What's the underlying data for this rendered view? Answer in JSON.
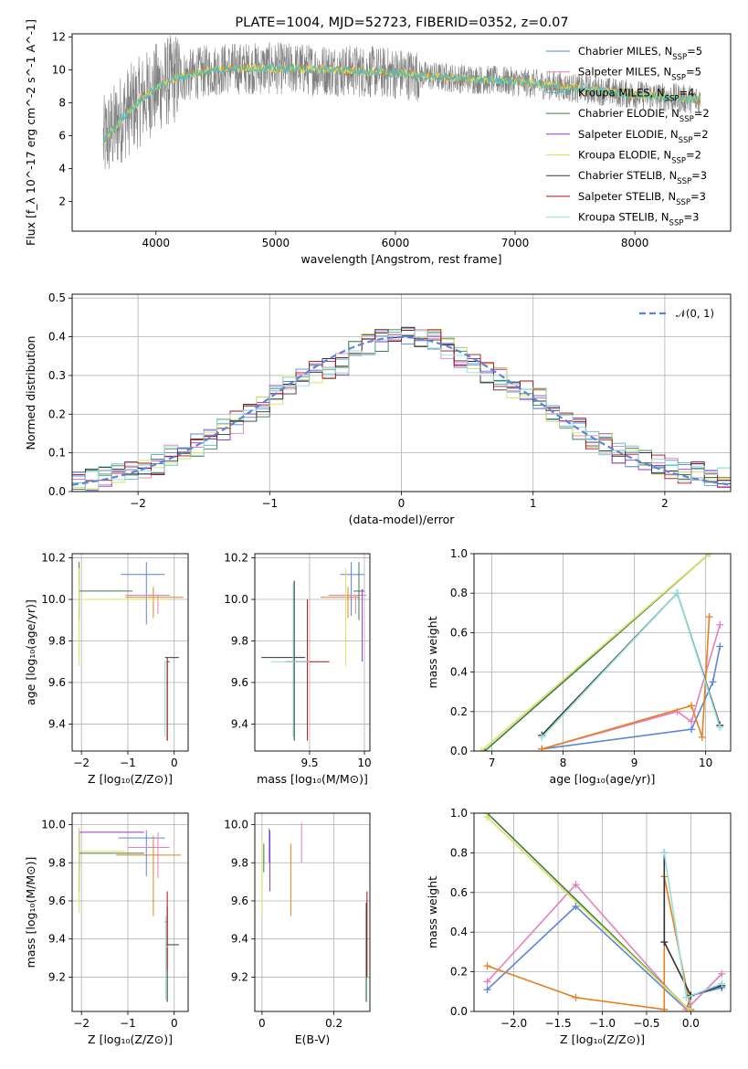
{
  "figure": {
    "title": "PLATE=1004, MJD=52723, FIBERID=0352, z=0.07"
  },
  "colors": {
    "Chabrier MILES": "#5b84d8",
    "Salpeter MILES": "#e37fbf",
    "Kroupa MILES": "#4fb8c9",
    "Chabrier ELODIE": "#3f7a4a",
    "Salpeter ELODIE": "#9933cc",
    "Kroupa ELODIE": "#d8e25a",
    "Chabrier STELIB": "#333333",
    "Salpeter STELIB": "#aa1111",
    "Kroupa STELIB": "#8fe0d8",
    "Kroupa MILES line": "#e8801f",
    "data": "#808080",
    "normal": "#5b84d8",
    "grid": "#b0b0b0"
  },
  "chart_data": [
    {
      "id": "spectrum",
      "type": "line",
      "title": "PLATE=1004, MJD=52723, FIBERID=0352, z=0.07",
      "xlabel": "wavelength [Angstrom, rest frame]",
      "ylabel": "Flux [f_λ 10^-17 erg cm^-2 s^-1 A^-1]",
      "xlim": [
        3300,
        8800
      ],
      "ylim": [
        0.2,
        12.2
      ],
      "xticks": [
        4000,
        5000,
        6000,
        7000,
        8000
      ],
      "yticks": [
        2,
        4,
        6,
        8,
        10,
        12
      ],
      "grid": false,
      "legend_position": "top-right",
      "legend": [
        {
          "prefix": "Chabrier MILES, N",
          "sub": "SSP",
          "suffix": "=5"
        },
        {
          "prefix": "Salpeter MILES, N",
          "sub": "SSP",
          "suffix": "=5"
        },
        {
          "prefix": "Kroupa MILES, N",
          "sub": "SSP",
          "suffix": "=4"
        },
        {
          "prefix": "Chabrier ELODIE, N",
          "sub": "SSP",
          "suffix": "=2"
        },
        {
          "prefix": "Salpeter ELODIE, N",
          "sub": "SSP",
          "suffix": "=2"
        },
        {
          "prefix": "Kroupa ELODIE, N",
          "sub": "SSP",
          "suffix": "=2"
        },
        {
          "prefix": "Chabrier STELIB, N",
          "sub": "SSP",
          "suffix": "=3"
        },
        {
          "prefix": "Salpeter STELIB, N",
          "sub": "SSP",
          "suffix": "=3"
        },
        {
          "prefix": "Kroupa STELIB, N",
          "sub": "SSP",
          "suffix": "=3"
        }
      ],
      "continuum_model": {
        "x": [
          3560,
          3600,
          3650,
          3700,
          3800,
          3900,
          4000,
          4100,
          4200,
          4300,
          4400,
          4600,
          5000,
          5500,
          6000,
          6500,
          7000,
          7500,
          8000,
          8500,
          8800
        ],
        "y": [
          5.6,
          6.1,
          6.4,
          7.0,
          7.7,
          8.3,
          8.9,
          9.3,
          9.6,
          9.7,
          9.9,
          10.1,
          10.1,
          10.0,
          9.8,
          9.5,
          9.3,
          8.9,
          8.5,
          8.2,
          8.0
        ]
      }
    },
    {
      "id": "residuals",
      "type": "line",
      "xlabel": "(data-model)/error",
      "ylabel": "Normed distribution",
      "xlim": [
        -2.5,
        2.5
      ],
      "ylim": [
        0,
        0.51
      ],
      "xticks": [
        -2,
        -1,
        0,
        1,
        2
      ],
      "xticklabels": [
        "−2",
        "−1",
        "0",
        "1",
        "2"
      ],
      "yticks": [
        0.0,
        0.1,
        0.2,
        0.3,
        0.4,
        0.5
      ],
      "grid": true,
      "legend_position": "top-right",
      "legend": [
        "𝒩(0, 1)"
      ],
      "bins": [
        -2.5,
        -2.4,
        -2.3,
        -2.2,
        -2.1,
        -2.0,
        -1.9,
        -1.8,
        -1.7,
        -1.6,
        -1.5,
        -1.4,
        -1.3,
        -1.2,
        -1.1,
        -1.0,
        -0.9,
        -0.8,
        -0.7,
        -0.6,
        -0.5,
        -0.4,
        -0.3,
        -0.2,
        -0.1,
        0.0,
        0.1,
        0.2,
        0.3,
        0.4,
        0.5,
        0.6,
        0.7,
        0.8,
        0.9,
        1.0,
        1.1,
        1.2,
        1.3,
        1.4,
        1.5,
        1.6,
        1.7,
        1.8,
        1.9,
        2.0,
        2.1,
        2.2,
        2.3,
        2.4,
        2.5
      ],
      "histogram": [
        0.025,
        0.03,
        0.035,
        0.045,
        0.05,
        0.06,
        0.07,
        0.09,
        0.1,
        0.12,
        0.14,
        0.16,
        0.18,
        0.2,
        0.22,
        0.25,
        0.28,
        0.3,
        0.31,
        0.32,
        0.33,
        0.36,
        0.38,
        0.39,
        0.4,
        0.41,
        0.4,
        0.39,
        0.37,
        0.35,
        0.33,
        0.31,
        0.29,
        0.27,
        0.26,
        0.24,
        0.2,
        0.18,
        0.16,
        0.14,
        0.12,
        0.1,
        0.09,
        0.08,
        0.07,
        0.06,
        0.05,
        0.05,
        0.045,
        0.04
      ]
    },
    {
      "id": "age-vs-Z",
      "type": "scatter",
      "xlabel": "Z [log₁₀(Z/Z⊙)]",
      "ylabel": "age  [log₁₀(age/yr)]",
      "xlim": [
        -2.2,
        0.3
      ],
      "ylim": [
        9.27,
        10.22
      ],
      "xticks": [
        -2,
        -1,
        0
      ],
      "xticklabels": [
        "−2",
        "−1",
        "0"
      ],
      "yticks": [
        9.4,
        9.6,
        9.8,
        10.0,
        10.2
      ],
      "grid": true,
      "points": [
        {
          "series": "Chabrier MILES",
          "x": -0.6,
          "y": 10.12,
          "xerr": [
            0.55,
            0.4
          ],
          "yerr": [
            0.24,
            0.06
          ]
        },
        {
          "series": "Salpeter MILES",
          "x": -0.35,
          "y": 10.02,
          "xerr": [
            0.7,
            0.25
          ],
          "yerr": [
            0.09,
            0.0
          ]
        },
        {
          "series": "Kroupa MILES line",
          "x": -0.45,
          "y": 10.01,
          "xerr": [
            0.6,
            0.65
          ],
          "yerr": [
            0.1,
            0.05
          ]
        },
        {
          "series": "Chabrier ELODIE",
          "x": -2.05,
          "y": 10.04,
          "xerr": [
            0.0,
            1.15
          ],
          "yerr": [
            0.14,
            0.14
          ]
        },
        {
          "series": "Kroupa ELODIE",
          "x": -2.05,
          "y": 10.0,
          "xerr": [
            0.0,
            1.9
          ],
          "yerr": [
            0.32,
            0.15
          ]
        },
        {
          "series": "Chabrier STELIB",
          "x": -0.15,
          "y": 9.72,
          "xerr": [
            0.05,
            0.25
          ],
          "yerr": [
            0.4,
            0.0
          ]
        },
        {
          "series": "Salpeter STELIB",
          "x": -0.15,
          "y": 9.7,
          "xerr": [
            0.05,
            0.05
          ],
          "yerr": [
            0.38,
            0.0
          ]
        },
        {
          "series": "Kroupa STELIB",
          "x": -0.2,
          "y": 9.7,
          "xerr": [
            0.0,
            0.05
          ],
          "yerr": [
            0.36,
            0.0
          ]
        }
      ]
    },
    {
      "id": "age-vs-mass",
      "type": "scatter",
      "xlabel": "mass [log₁₀(M/M⊙)]",
      "xlim": [
        9.0,
        10.05
      ],
      "ylim": [
        9.27,
        10.22
      ],
      "xticks": [
        9.5,
        10.0
      ],
      "yticks": [
        9.4,
        9.6,
        9.8,
        10.0,
        10.2
      ],
      "grid": true,
      "points": [
        {
          "series": "Chabrier MILES",
          "x": 9.88,
          "y": 10.12,
          "xerr": [
            0.1,
            0.12
          ],
          "yerr": [
            0.2,
            0.06
          ]
        },
        {
          "series": "Salpeter MILES",
          "x": 9.92,
          "y": 10.02,
          "xerr": [
            0.25,
            0.1
          ],
          "yerr": [
            0.09,
            0.0
          ]
        },
        {
          "series": "Kroupa MILES line",
          "x": 9.85,
          "y": 10.01,
          "xerr": [
            0.25,
            0.1
          ],
          "yerr": [
            0.1,
            0.05
          ]
        },
        {
          "series": "Chabrier ELODIE",
          "x": 9.95,
          "y": 10.04,
          "xerr": [
            0.05,
            0.05
          ],
          "yerr": [
            0.14,
            0.14
          ]
        },
        {
          "series": "Salpeter ELODIE",
          "x": 9.98,
          "y": 9.9,
          "xerr": [
            0.0,
            0.0
          ],
          "yerr": [
            0.2,
            0.15
          ]
        },
        {
          "series": "Kroupa ELODIE",
          "x": 9.83,
          "y": 10.0,
          "xerr": [
            0.0,
            0.0
          ],
          "yerr": [
            0.32,
            0.15
          ]
        },
        {
          "series": "Chabrier STELIB",
          "x": 9.36,
          "y": 9.72,
          "xerr": [
            0.3,
            0.1
          ],
          "yerr": [
            0.4,
            0.37
          ]
        },
        {
          "series": "Salpeter STELIB",
          "x": 9.48,
          "y": 9.7,
          "xerr": [
            0.2,
            0.2
          ],
          "yerr": [
            0.38,
            0.3
          ]
        },
        {
          "series": "Kroupa STELIB",
          "x": 9.35,
          "y": 9.7,
          "xerr": [
            0.2,
            0.15
          ],
          "yerr": [
            0.36,
            0.38
          ]
        }
      ]
    },
    {
      "id": "weight-vs-age",
      "type": "line",
      "xlabel": "age  [log₁₀(age/yr)]",
      "ylabel": "mass weight",
      "xlim": [
        6.75,
        10.35
      ],
      "ylim": [
        0,
        1
      ],
      "xticks": [
        7,
        8,
        9,
        10
      ],
      "yticks": [
        0.0,
        0.2,
        0.4,
        0.6,
        0.8,
        1.0
      ],
      "grid": true,
      "series": [
        {
          "name": "Chabrier MILES",
          "x": [
            7.7,
            9.8,
            10.1,
            10.2
          ],
          "y": [
            0.01,
            0.11,
            0.35,
            0.53
          ]
        },
        {
          "name": "Salpeter MILES",
          "x": [
            7.7,
            9.6,
            9.8,
            10.2
          ],
          "y": [
            0.01,
            0.2,
            0.15,
            0.64
          ]
        },
        {
          "name": "Kroupa MILES line",
          "x": [
            7.7,
            9.8,
            9.95,
            10.05
          ],
          "y": [
            0.01,
            0.23,
            0.07,
            0.68
          ]
        },
        {
          "name": "Chabrier ELODIE",
          "x": [
            6.9,
            10.05
          ],
          "y": [
            0.0,
            1.0
          ]
        },
        {
          "name": "Kroupa ELODIE",
          "x": [
            6.85,
            10.05
          ],
          "y": [
            0.0,
            1.0
          ]
        },
        {
          "name": "Chabrier STELIB",
          "x": [
            7.7,
            9.6,
            10.2
          ],
          "y": [
            0.08,
            0.8,
            0.13
          ]
        },
        {
          "name": "Kroupa STELIB",
          "x": [
            7.7,
            9.6,
            10.2
          ],
          "y": [
            0.07,
            0.8,
            0.12
          ]
        }
      ]
    },
    {
      "id": "mass-vs-Z",
      "type": "scatter",
      "xlabel": "Z [log₁₀(Z/Z⊙)]",
      "ylabel": "mass [log₁₀(M/M⊙)]",
      "xlim": [
        -2.2,
        0.3
      ],
      "ylim": [
        9.02,
        10.06
      ],
      "xticks": [
        -2,
        -1,
        0
      ],
      "xticklabels": [
        "−2",
        "−1",
        "0"
      ],
      "yticks": [
        9.2,
        9.4,
        9.6,
        9.8,
        10.0
      ],
      "grid": true,
      "points": [
        {
          "series": "Chabrier MILES",
          "x": -0.6,
          "y": 9.93,
          "xerr": [
            0.6,
            0.4
          ],
          "yerr": [
            0.2,
            0.04
          ]
        },
        {
          "series": "Salpeter MILES",
          "x": -0.35,
          "y": 9.88,
          "xerr": [
            0.65,
            0.25
          ],
          "yerr": [
            0.16,
            0.08
          ]
        },
        {
          "series": "Kroupa MILES line",
          "x": -0.45,
          "y": 9.84,
          "xerr": [
            0.8,
            0.6
          ],
          "yerr": [
            0.32,
            0.1
          ]
        },
        {
          "series": "Salpeter ELODIE",
          "x": -2.05,
          "y": 9.96,
          "xerr": [
            0.0,
            1.4
          ],
          "yerr": [
            0.2,
            0.02
          ]
        },
        {
          "series": "Chabrier ELODIE",
          "x": -2.05,
          "y": 9.85,
          "xerr": [
            0.0,
            1.4
          ],
          "yerr": [
            0.2,
            0.1
          ]
        },
        {
          "series": "Kroupa ELODIE",
          "x": -2.05,
          "y": 9.86,
          "xerr": [
            0.0,
            1.0
          ],
          "yerr": [
            0.32,
            0.12
          ]
        },
        {
          "series": "Chabrier STELIB",
          "x": -0.15,
          "y": 9.37,
          "xerr": [
            0.0,
            0.25
          ],
          "yerr": [
            0.3,
            0.2
          ]
        },
        {
          "series": "Salpeter STELIB",
          "x": -0.15,
          "y": 9.49,
          "xerr": [
            0.05,
            0.0
          ],
          "yerr": [
            0.25,
            0.16
          ]
        },
        {
          "series": "Kroupa STELIB",
          "x": -0.18,
          "y": 9.36,
          "xerr": [
            0.0,
            0.05
          ],
          "yerr": [
            0.28,
            0.16
          ]
        }
      ]
    },
    {
      "id": "mass-vs-EBV",
      "type": "scatter",
      "xlabel": "E(B-V)",
      "xlim": [
        -0.02,
        0.3
      ],
      "ylim": [
        9.02,
        10.06
      ],
      "xticks": [
        0.0,
        0.2
      ],
      "yticks": [
        9.2,
        9.4,
        9.6,
        9.8,
        10.0
      ],
      "grid": true,
      "points": [
        {
          "series": "Chabrier MILES",
          "x": 0.02,
          "y": 9.95,
          "yerr": [
            0.15,
            0.03
          ]
        },
        {
          "series": "Salpeter MILES",
          "x": 0.11,
          "y": 9.92,
          "yerr": [
            0.12,
            0.09
          ]
        },
        {
          "series": "Kroupa MILES line",
          "x": 0.08,
          "y": 9.84,
          "yerr": [
            0.32,
            0.06
          ]
        },
        {
          "series": "Salpeter ELODIE",
          "x": 0.022,
          "y": 9.85,
          "yerr": [
            0.2,
            0.12
          ]
        },
        {
          "series": "Chabrier ELODIE",
          "x": 0.005,
          "y": 9.85,
          "yerr": [
            0.1,
            0.05
          ]
        },
        {
          "series": "Kroupa ELODIE",
          "x": 0.0,
          "y": 9.8,
          "yerr": [
            0.27,
            0.12
          ]
        },
        {
          "series": "Chabrier STELIB",
          "x": 0.29,
          "y": 9.37,
          "yerr": [
            0.3,
            0.22
          ]
        },
        {
          "series": "Salpeter STELIB",
          "x": 0.292,
          "y": 9.5,
          "yerr": [
            0.3,
            0.15
          ]
        },
        {
          "series": "Kroupa STELIB",
          "x": 0.288,
          "y": 9.36,
          "yerr": [
            0.28,
            0.2
          ]
        }
      ]
    },
    {
      "id": "weight-vs-Z",
      "type": "line",
      "xlabel": "Z [log₁₀(Z/Z⊙)]",
      "ylabel": "mass weight",
      "xlim": [
        -2.45,
        0.45
      ],
      "ylim": [
        0,
        1
      ],
      "xticks": [
        -2.0,
        -1.5,
        -1.0,
        -0.5,
        0.0
      ],
      "xticklabels": [
        "−2.0",
        "−1.5",
        "−1.0",
        "−0.5",
        "0.0"
      ],
      "yticks": [
        0.0,
        0.2,
        0.4,
        0.6,
        0.8,
        1.0
      ],
      "grid": true,
      "series": [
        {
          "name": "Chabrier MILES",
          "x": [
            -2.3,
            -1.3,
            -0.05,
            0.0,
            0.35
          ],
          "y": [
            0.11,
            0.53,
            0.01,
            0.08,
            0.12
          ]
        },
        {
          "name": "Salpeter MILES",
          "x": [
            -2.3,
            -1.3,
            -0.05,
            0.35
          ],
          "y": [
            0.15,
            0.64,
            0.01,
            0.19
          ]
        },
        {
          "name": "Kroupa MILES line",
          "x": [
            -2.3,
            -1.3,
            -0.3,
            -0.3,
            0.0
          ],
          "y": [
            0.23,
            0.07,
            0.01,
            0.68,
            0.01
          ]
        },
        {
          "name": "Chabrier ELODIE",
          "x": [
            -2.3,
            0.0
          ],
          "y": [
            1.0,
            0.0
          ]
        },
        {
          "name": "Kroupa ELODIE",
          "x": [
            -2.3,
            0.0
          ],
          "y": [
            0.98,
            0.0
          ]
        },
        {
          "name": "Chabrier STELIB",
          "x": [
            -0.3,
            -0.3,
            0.0,
            0.35
          ],
          "y": [
            0.8,
            0.35,
            0.08,
            0.13
          ]
        },
        {
          "name": "Kroupa STELIB",
          "x": [
            -0.3,
            -0.05,
            0.35
          ],
          "y": [
            0.8,
            0.07,
            0.14
          ]
        }
      ]
    }
  ]
}
